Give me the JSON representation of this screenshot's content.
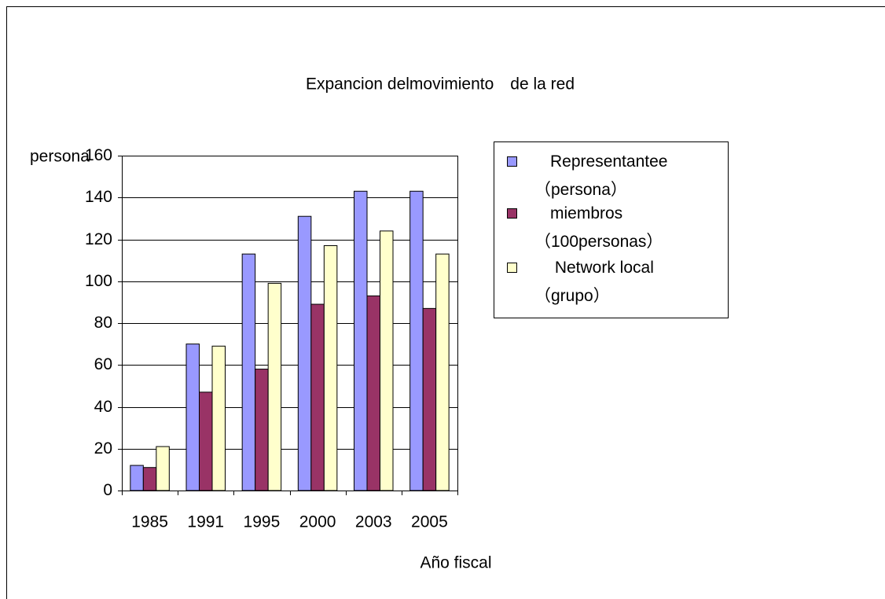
{
  "chart_data": {
    "type": "bar",
    "title": "Expancion delmovimiento　de la red",
    "y_label": "persona",
    "x_label": "Año fiscal",
    "categories": [
      "1985",
      "1991",
      "1995",
      "2000",
      "2003",
      "2005"
    ],
    "series": [
      {
        "name": "Representantee\n（persona）",
        "color": "#9999ff",
        "values": [
          12,
          70,
          113,
          131,
          143,
          143
        ]
      },
      {
        "name": "miembros\n（100personas）",
        "color": "#993366",
        "values": [
          11,
          47,
          58,
          89,
          93,
          87
        ]
      },
      {
        "name": " Network local\n（grupo）",
        "color": "#ffffcc",
        "values": [
          21,
          69,
          99,
          117,
          124,
          113
        ]
      }
    ],
    "ylim": [
      0,
      160
    ],
    "yticks": [
      0,
      20,
      40,
      60,
      80,
      100,
      120,
      140,
      160
    ],
    "grid": true,
    "legend": "right"
  }
}
